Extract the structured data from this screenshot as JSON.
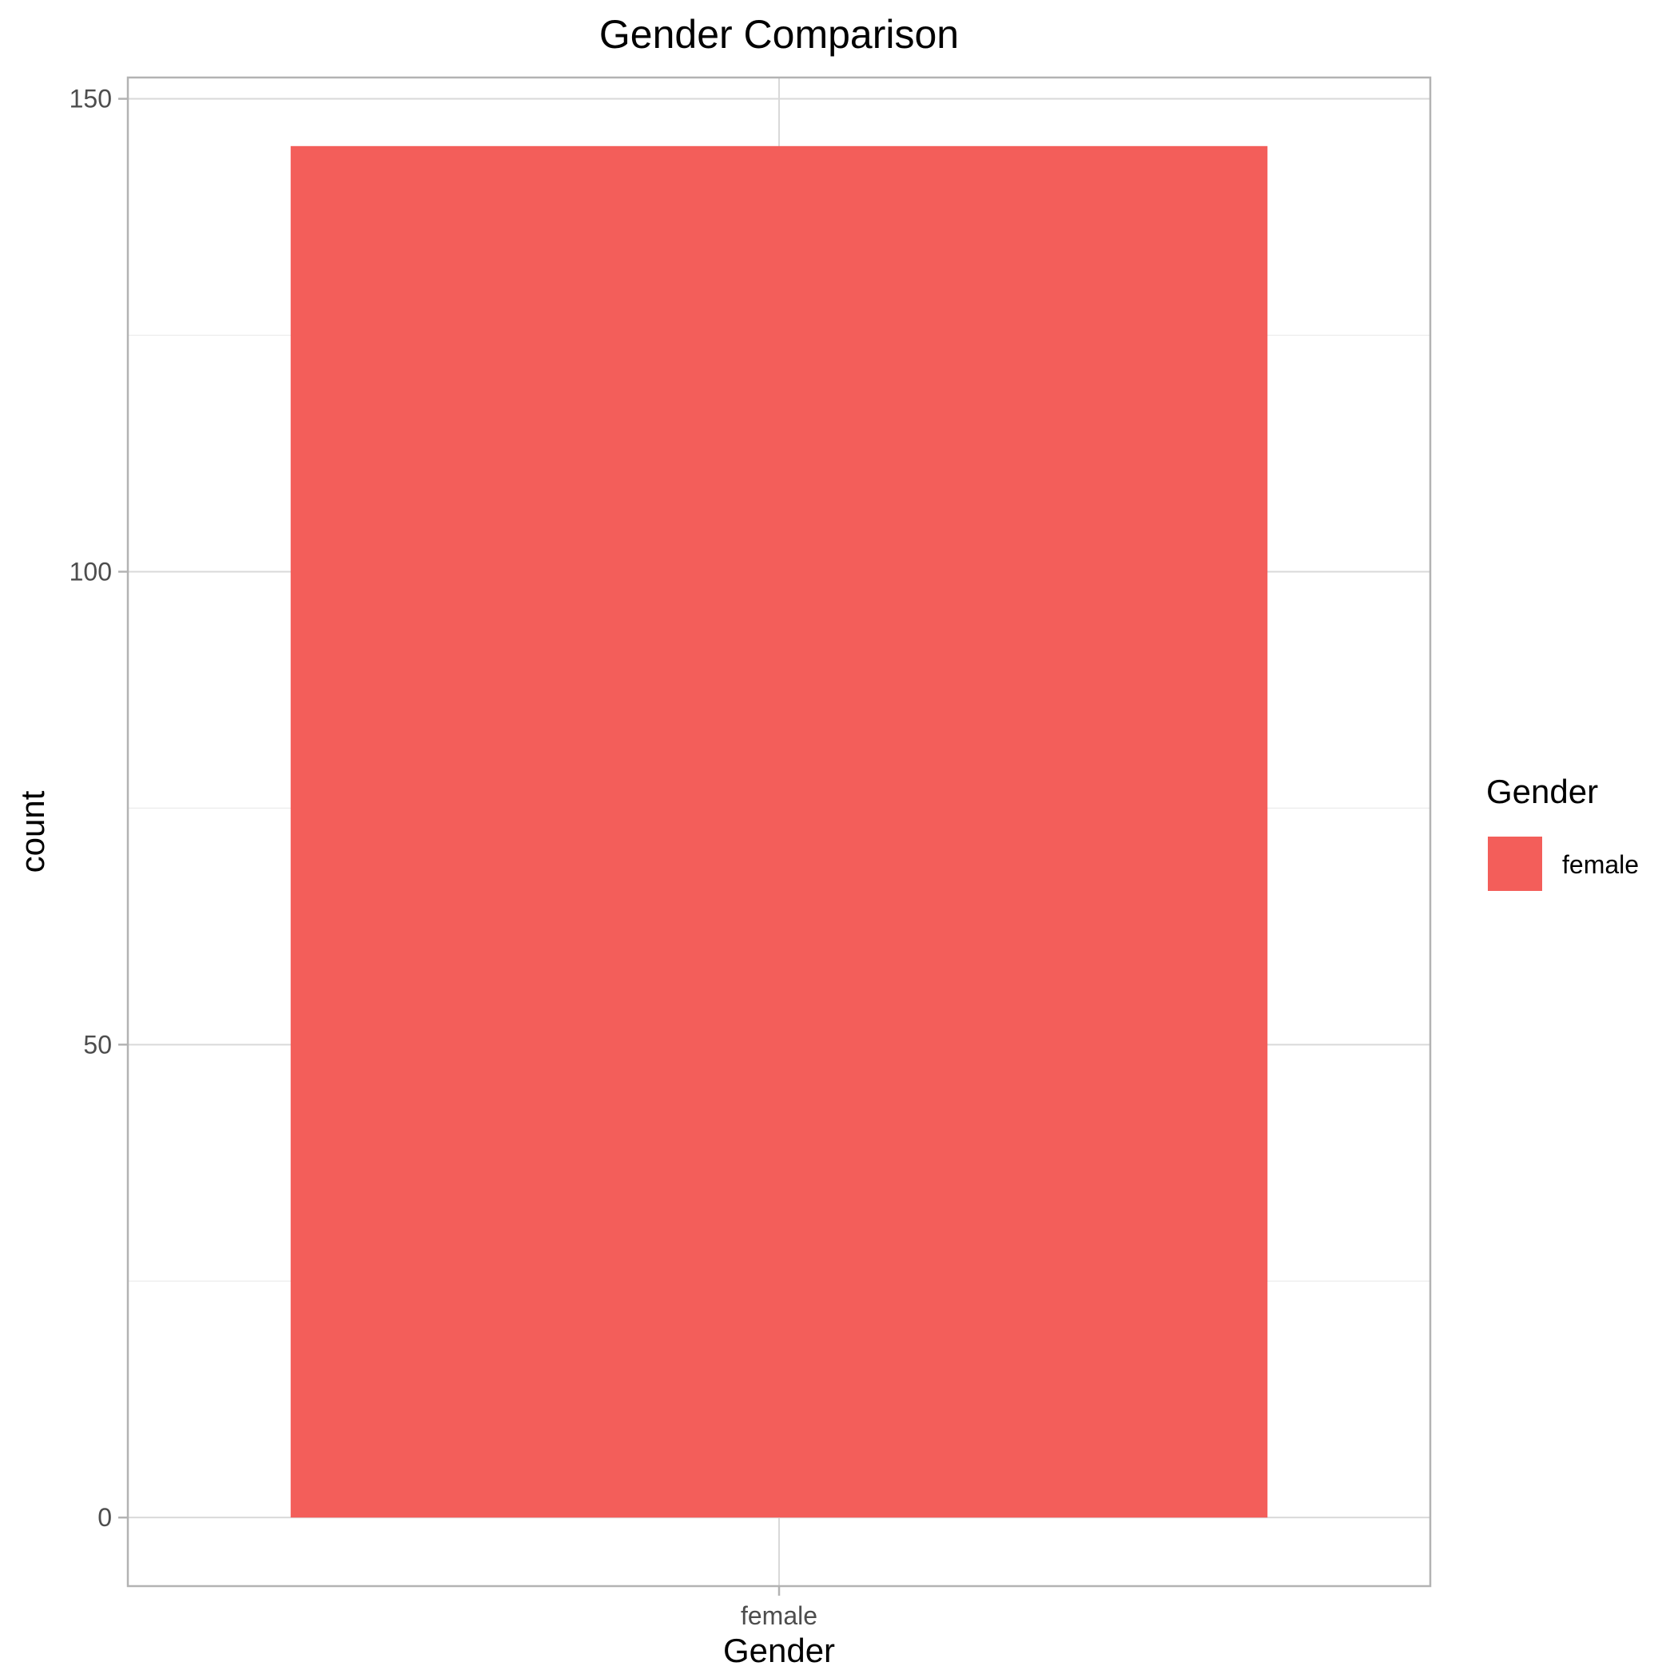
{
  "chart_data": {
    "type": "bar",
    "title": "Gender Comparison",
    "xlabel": "Gender",
    "ylabel": "count",
    "categories": [
      "female"
    ],
    "values": [
      145
    ],
    "ylim": [
      -7.25,
      152.25
    ],
    "yticks": [
      0,
      50,
      100,
      150
    ],
    "yminor": [
      25,
      75,
      125
    ],
    "grid": true,
    "legend": {
      "title": "Gender",
      "placement": "right",
      "entries": [
        {
          "label": "female",
          "color": "#F35E5A"
        }
      ]
    },
    "colors": {
      "female": "#F35E5A"
    }
  }
}
